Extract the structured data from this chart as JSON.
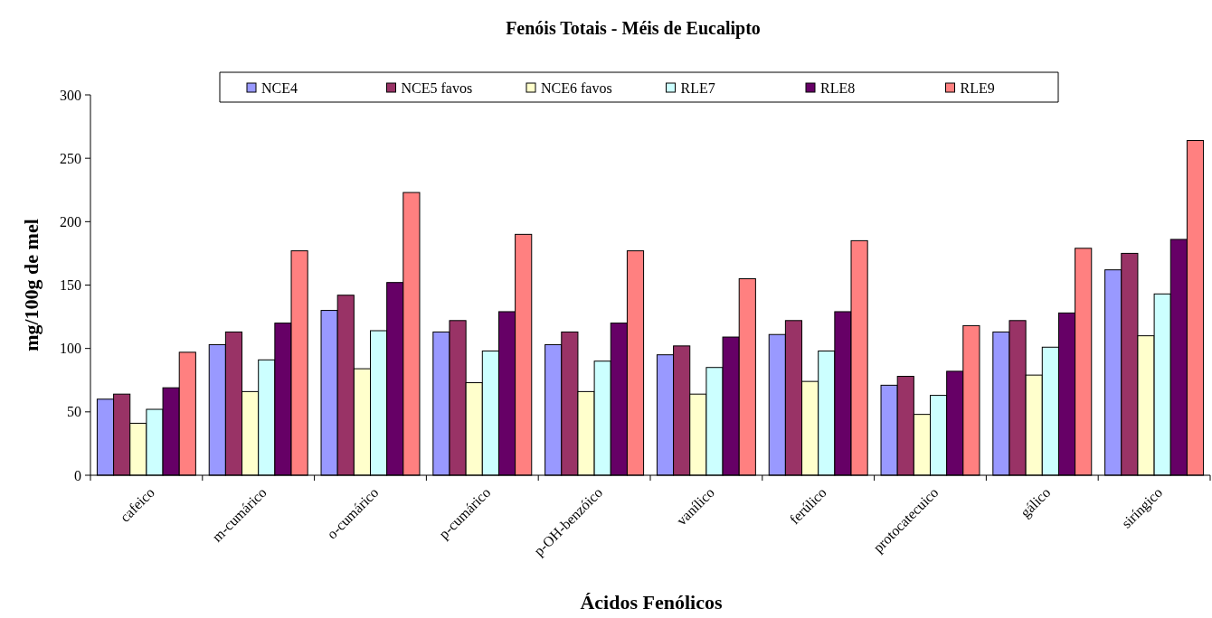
{
  "chart_data": {
    "type": "bar",
    "title": "Fenóis Totais - Méis de Eucalipto",
    "xlabel": "Ácidos Fenólicos",
    "ylabel": "mg/100g de mel",
    "categories": [
      "cafeico",
      "m-cumárico",
      "o-cumárico",
      "p-cumárico",
      "p-OH-benzóico",
      "vanílico",
      "ferúlico",
      "protocatecuico",
      "gálico",
      "siríngico"
    ],
    "series": [
      {
        "name": "NCE4",
        "color": "#9999ff",
        "values": [
          60,
          103,
          130,
          113,
          103,
          95,
          111,
          71,
          113,
          162
        ]
      },
      {
        "name": "NCE5 favos",
        "color": "#993366",
        "values": [
          64,
          113,
          142,
          122,
          113,
          102,
          122,
          78,
          122,
          175
        ]
      },
      {
        "name": "NCE6 favos",
        "color": "#ffffcc",
        "values": [
          41,
          66,
          84,
          73,
          66,
          64,
          74,
          48,
          79,
          110
        ]
      },
      {
        "name": "RLE7",
        "color": "#ccffff",
        "values": [
          52,
          91,
          114,
          98,
          90,
          85,
          98,
          63,
          101,
          143
        ]
      },
      {
        "name": "RLE8",
        "color": "#660066",
        "values": [
          69,
          120,
          152,
          129,
          120,
          109,
          129,
          82,
          128,
          186
        ]
      },
      {
        "name": "RLE9",
        "color": "#ff8080",
        "values": [
          97,
          177,
          223,
          190,
          177,
          155,
          185,
          118,
          179,
          264
        ]
      }
    ],
    "ylim": [
      0,
      300
    ],
    "yticks": [
      0,
      50,
      100,
      150,
      200,
      250,
      300
    ],
    "grid": false,
    "legend": "top"
  }
}
